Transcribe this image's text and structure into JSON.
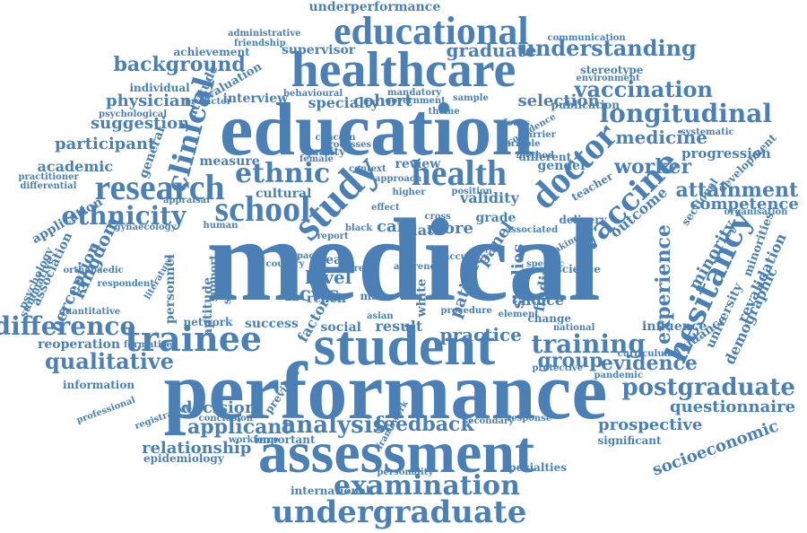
{
  "color": "#4a80b5",
  "words": [
    "medical",
    "performance",
    "student",
    "assessment",
    "education",
    "healthcare",
    "educational",
    "trainee",
    "doctor",
    "study",
    "research",
    "school",
    "health",
    "undergraduate",
    "examination",
    "hesitancy",
    "vaccine",
    "ethnicity",
    "ethnic",
    "clinical",
    "longitudinal",
    "background",
    "understanding",
    "vaccination",
    "postgraduate",
    "difference",
    "qualitative",
    "training",
    "analysis",
    "applicant",
    "feedback",
    "attainment",
    "experience",
    "practice",
    "evidence",
    "group",
    "questionnaire",
    "prospective",
    "socioeconomic",
    "relationship",
    "decision",
    "kingdom",
    "perception",
    "minority",
    "competence",
    "medicine",
    "worker",
    "progression",
    "revalidation",
    "demographic",
    "university",
    "minorities",
    "selection",
    "cohort",
    "specialty",
    "physician",
    "suggestion",
    "participant",
    "academic",
    "measure",
    "underperformance",
    "administrative",
    "friendship",
    "supervisor",
    "achievement",
    "communication",
    "stereotype",
    "graduate",
    "individual",
    "evaluation",
    "attitude",
    "interview",
    "psychological",
    "general",
    "publication",
    "environment",
    "systematic",
    "development",
    "sectional",
    "organisation",
    "application",
    "association",
    "psychology",
    "summative",
    "differential",
    "practitioner",
    "cultural",
    "review",
    "gender",
    "different",
    "teacher",
    "delivery",
    "outcome",
    "care",
    "data",
    "more",
    "grade",
    "panel",
    "validity",
    "hcws",
    "level",
    "year",
    "patient",
    "studies",
    "finding",
    "choice",
    "change",
    "science",
    "culture",
    "aptitude",
    "support",
    "personnel",
    "system",
    "success",
    "network",
    "factor",
    "social",
    "result",
    "reach",
    "male",
    "white",
    "asian",
    "information",
    "professional",
    "previous",
    "framework",
    "formative",
    "reoperation",
    "workforce",
    "important",
    "conclusion",
    "epidemiology",
    "international",
    "personality",
    "specialties",
    "significant",
    "secondary",
    "response",
    "national",
    "influence",
    "curriculum",
    "guidance",
    "pandemic",
    "registration",
    "quality",
    "female",
    "method",
    "human",
    "report",
    "black",
    "effect",
    "cross",
    "higher",
    "impact",
    "country",
    "career",
    "specific",
    "literature",
    "quantitative",
    "respondent",
    "gynaecology",
    "appraisal",
    "orthopaedic",
    "procedure",
    "mandatory",
    "government",
    "behavioural",
    "protective",
    "element",
    "making",
    "predictor",
    "accuracy",
    "awareness",
    "concern",
    "processes",
    "confidence",
    "variable",
    "sample",
    "theme",
    "focus",
    "barrier",
    "context",
    "approach",
    "position",
    "associated"
  ]
}
